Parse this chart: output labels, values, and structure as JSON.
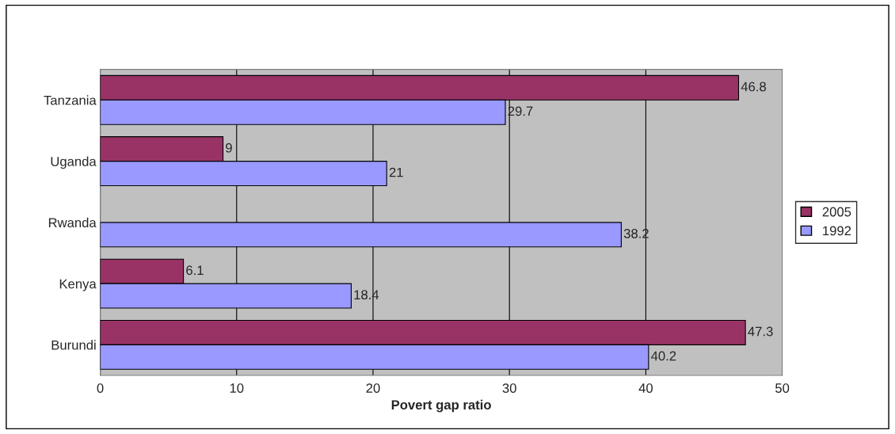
{
  "chart_data": {
    "type": "bar",
    "orientation": "horizontal",
    "xlabel": "Povert gap ratio",
    "categories": [
      "Tanzania",
      "Uganda",
      "Rwanda",
      "Kenya",
      "Burundi"
    ],
    "series": [
      {
        "name": "2005",
        "color": "#993366",
        "values": [
          46.8,
          9,
          null,
          6.1,
          47.3
        ]
      },
      {
        "name": "1992",
        "color": "#9999ff",
        "values": [
          29.7,
          21,
          38.2,
          18.4,
          40.2
        ]
      }
    ],
    "xlim": [
      0,
      50
    ],
    "xticks": [
      0,
      10,
      20,
      30,
      40,
      50
    ],
    "grid": "x",
    "legend": "right",
    "data_labels": true
  }
}
